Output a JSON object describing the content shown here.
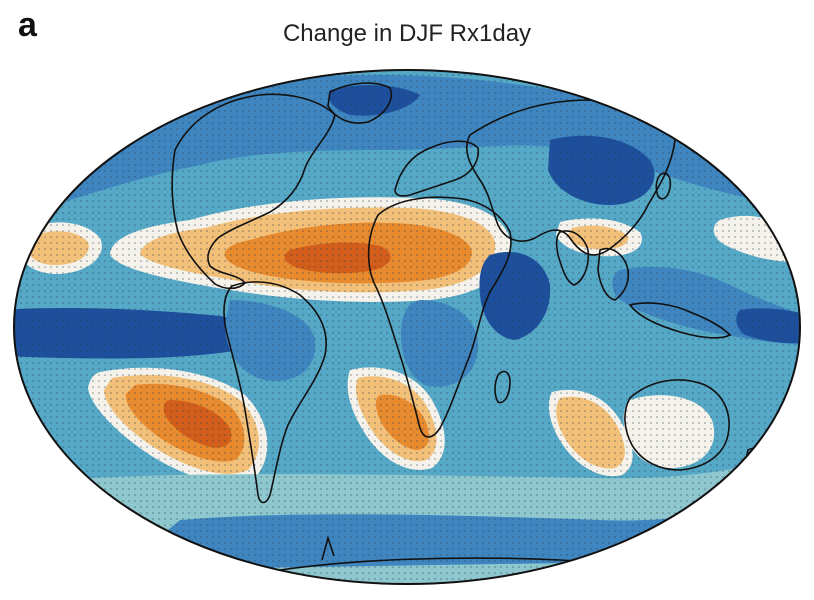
{
  "figure": {
    "panel_label": "a",
    "title": "Change in DJF Rx1day"
  },
  "map": {
    "projection": "mollweide",
    "stippling": "dotted",
    "colors": {
      "strong_wet": "#1d4f9c",
      "wet": "#3f86c0",
      "mild_wet": "#56a8c7",
      "slight_wet": "#8fc7cf",
      "neutral": "#f4f2ea",
      "mild_dry": "#f2c079",
      "dry": "#e88a2e",
      "strong_dry": "#d35e1b",
      "coastline": "#111111"
    }
  }
}
